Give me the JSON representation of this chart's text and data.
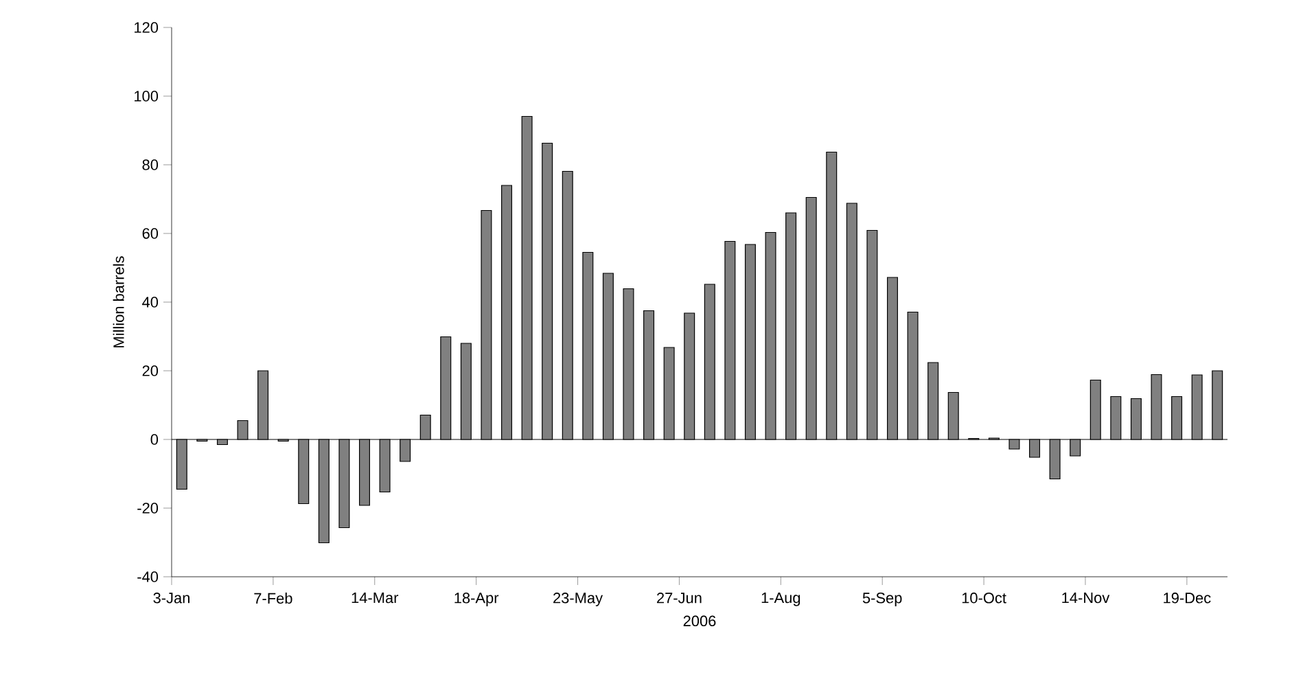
{
  "chart_data": {
    "type": "bar",
    "xlabel": "2006",
    "ylabel": "Million barrels",
    "categories": [
      "3-Jan",
      null,
      null,
      null,
      null,
      "7-Feb",
      null,
      null,
      null,
      null,
      "14-Mar",
      null,
      null,
      null,
      null,
      "18-Apr",
      null,
      null,
      null,
      null,
      "23-May",
      null,
      null,
      null,
      null,
      "27-Jun",
      null,
      null,
      null,
      null,
      "1-Aug",
      null,
      null,
      null,
      null,
      "5-Sep",
      null,
      null,
      null,
      null,
      "10-Oct",
      null,
      null,
      null,
      null,
      "14-Nov",
      null,
      null,
      null,
      null,
      "19-Dec",
      null
    ],
    "values": [
      -14.5,
      -0.5,
      -1.5,
      5.5,
      20,
      -0.5,
      -18.7,
      -30.1,
      -25.7,
      -19.2,
      -15.3,
      -6.4,
      7.1,
      29.9,
      28,
      66.7,
      74,
      94.1,
      86.3,
      78.1,
      54.5,
      48.4,
      43.9,
      37.5,
      26.8,
      36.8,
      45.2,
      57.7,
      56.8,
      60.3,
      66,
      70.5,
      83.7,
      68.8,
      60.9,
      47.2,
      37.1,
      22.4,
      13.7,
      0.3,
      0.4,
      -2.8,
      -5.2,
      -11.5,
      -4.8,
      17.3,
      12.5,
      11.9,
      18.9,
      12.5,
      18.8,
      20
    ],
    "color": "#808080",
    "ylim": [
      -40,
      120
    ],
    "yticks": [
      -40,
      -20,
      0,
      20,
      40,
      60,
      80,
      100,
      120
    ],
    "ref_lines": [
      {
        "axis": "y",
        "value": 0
      }
    ]
  }
}
